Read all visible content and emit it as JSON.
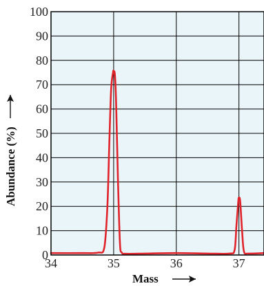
{
  "chart_data": {
    "type": "line",
    "title": "",
    "xlabel": "Mass",
    "ylabel": "Abundance (%)",
    "xlim": [
      34,
      37.4
    ],
    "ylim": [
      0,
      100
    ],
    "x_ticks": [
      34,
      35,
      36,
      37
    ],
    "y_ticks": [
      0,
      10,
      20,
      30,
      40,
      50,
      60,
      70,
      80,
      90,
      100
    ],
    "grid": true,
    "axis_arrows": true,
    "plot_background": "#eaf5f9",
    "line_color": "#e0222a",
    "series": [
      {
        "x": [
          34.0,
          34.5,
          34.75,
          34.85,
          34.9,
          34.93,
          34.96,
          34.99,
          35.0,
          35.02,
          35.04,
          35.07,
          35.1,
          35.13,
          35.2,
          35.5,
          36.0,
          36.5,
          36.85,
          36.93,
          36.96,
          36.99,
          37.0,
          37.02,
          37.05,
          37.08,
          37.15,
          37.4
        ],
        "y": [
          0.8,
          0.8,
          1.0,
          3.0,
          20,
          45,
          68,
          75,
          75.5,
          74,
          62,
          30,
          5,
          1.0,
          0.5,
          0.6,
          0.8,
          0.6,
          0.6,
          2.0,
          12,
          22,
          23.5,
          22,
          10,
          1.5,
          0.6,
          0.8
        ]
      }
    ]
  }
}
